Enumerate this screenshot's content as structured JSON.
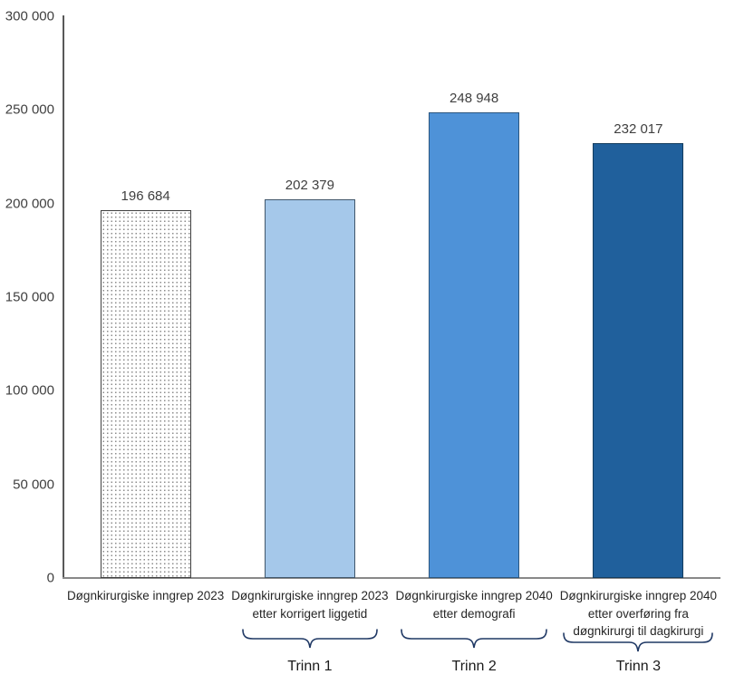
{
  "chart_data": {
    "type": "bar",
    "title": "",
    "xlabel": "",
    "ylabel": "",
    "grid": false,
    "legend": false,
    "ylim": [
      0,
      300000
    ],
    "yticks": [
      {
        "value": 0,
        "label": "0"
      },
      {
        "value": 50000,
        "label": "50 000"
      },
      {
        "value": 100000,
        "label": "100 000"
      },
      {
        "value": 150000,
        "label": "150 000"
      },
      {
        "value": 200000,
        "label": "200 000"
      },
      {
        "value": 250000,
        "label": "250 000"
      },
      {
        "value": 300000,
        "label": "300 000"
      }
    ],
    "categories": [
      "Døgnkirurgiske inngrep 2023",
      "Døgnkirurgiske inngrep 2023 etter korrigert liggetid",
      "Døgnkirurgiske inngrep 2040 etter demografi",
      "Døgnkirurgiske inngrep 2040 etter overføring fra døgnkirurgi til dagkirurgi"
    ],
    "category_lines": [
      [
        "Døgnkirurgiske inngrep 2023"
      ],
      [
        "Døgnkirurgiske inngrep 2023",
        "etter korrigert liggetid"
      ],
      [
        "Døgnkirurgiske inngrep 2040",
        "etter demografi"
      ],
      [
        "Døgnkirurgiske inngrep 2040",
        "etter overføring fra",
        "døgnkirurgi til dagkirurgi"
      ]
    ],
    "values": [
      196684,
      202379,
      248948,
      232017
    ],
    "value_labels": [
      "196 684",
      "202 379",
      "248 948",
      "232 017"
    ],
    "bar_styles": [
      {
        "pattern": true,
        "fill": "#ffffff",
        "border": "#404040"
      },
      {
        "pattern": false,
        "fill": "#A5C8EA",
        "border": "#41576B"
      },
      {
        "pattern": false,
        "fill": "#4E92D8",
        "border": "#2B567F"
      },
      {
        "pattern": false,
        "fill": "#20609C",
        "border": "#143D5F"
      }
    ],
    "groups": [
      {
        "label": "Trinn 1",
        "bar_index": 1,
        "brace_width": 150
      },
      {
        "label": "Trinn 2",
        "bar_index": 2,
        "brace_width": 162
      },
      {
        "label": "Trinn 3",
        "bar_index": 3,
        "brace_width": 166
      }
    ],
    "brace_color": "#1F3864"
  }
}
